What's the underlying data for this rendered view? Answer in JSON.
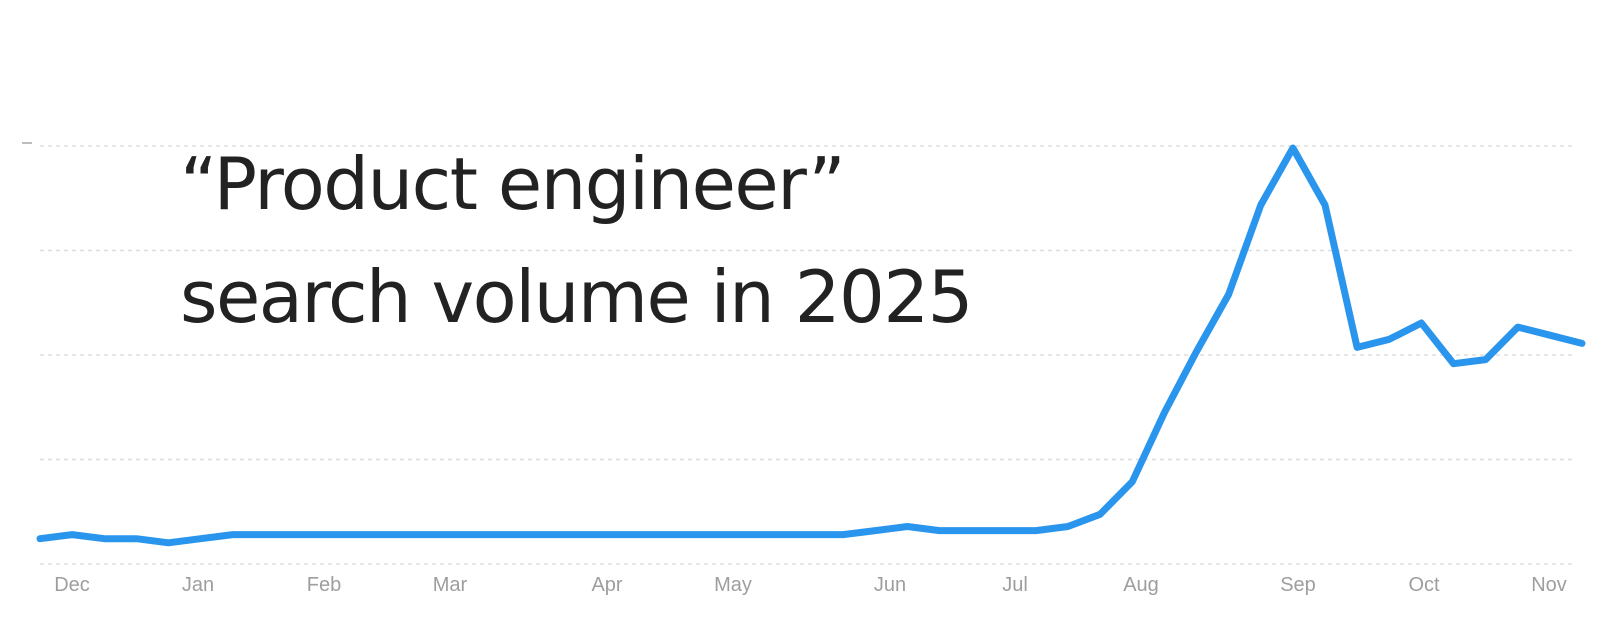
{
  "chart_data": {
    "type": "line",
    "title_lines": [
      "“Product engineer”",
      "search volume in 2025"
    ],
    "xlabel": "",
    "ylabel": "",
    "x_tick_labels": [
      "Dec",
      "Jan",
      "Feb",
      "Mar",
      "Apr",
      "May",
      "Jun",
      "Jul",
      "Aug",
      "Sep",
      "Oct",
      "Nov"
    ],
    "ylim": [
      0,
      100
    ],
    "y_gridlines": [
      0,
      25,
      50,
      75,
      100
    ],
    "grid": true,
    "series": [
      {
        "color": "#2a95ed",
        "values": [
          4,
          5,
          4,
          4,
          3,
          4,
          5,
          5,
          5,
          5,
          5,
          5,
          5,
          5,
          5,
          5,
          5,
          5,
          5,
          5,
          5,
          5,
          5,
          5,
          5,
          5,
          6,
          7,
          6,
          6,
          6,
          6,
          7,
          10,
          18,
          35,
          50,
          64,
          86,
          100,
          86,
          51,
          53,
          57,
          47,
          48,
          56,
          54,
          52
        ]
      }
    ]
  }
}
